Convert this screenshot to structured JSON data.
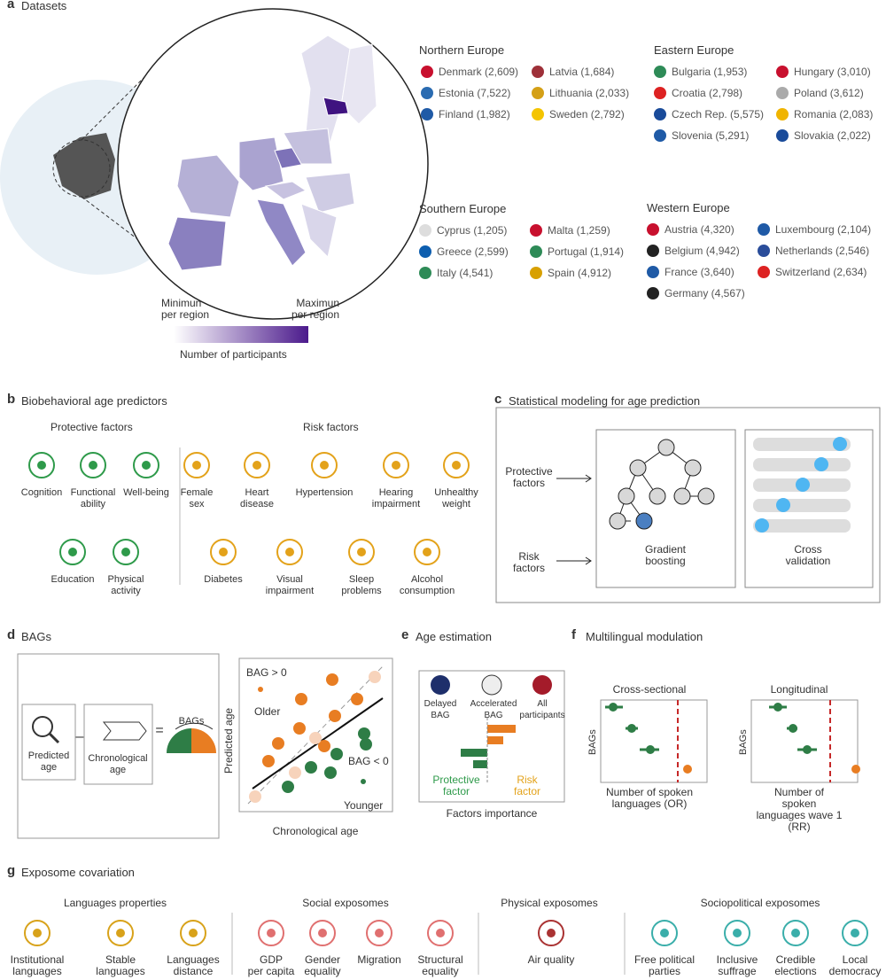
{
  "a": {
    "label": "a",
    "title": "Datasets",
    "regions": [
      {
        "name": "Northern Europe",
        "countries": [
          "Denmark (2,609)",
          "Latvia (1,684)",
          "Estonia (7,522)",
          "Lithuania (2,033)",
          "Finland (1,982)",
          "Sweden (2,792)"
        ]
      },
      {
        "name": "Eastern Europe",
        "countries": [
          "Bulgaria (1,953)",
          "Hungary (3,010)",
          "Croatia (2,798)",
          "Poland (3,612)",
          "Czech Rep. (5,575)",
          "Romania (2,083)",
          "Slovenia (5,291)",
          "Slovakia (2,022)"
        ]
      },
      {
        "name": "Southern Europe",
        "countries": [
          "Cyprus (1,205)",
          "Malta (1,259)",
          "Greece (2,599)",
          "Portugal (1,914)",
          "Italy (4,541)",
          "Spain (4,912)"
        ]
      },
      {
        "name": "Western Europe",
        "countries": [
          "Austria (4,320)",
          "Luxembourg (2,104)",
          "Belgium (4,942)",
          "Netherlands (2,546)",
          "France (3,640)",
          "Switzerland (2,634)",
          "Germany (4,567)"
        ]
      }
    ],
    "legend_min": "Minimun\nper region",
    "legend_max": "Maximun\nper region",
    "legend_caption": "Number of participants"
  },
  "b": {
    "label": "b",
    "title": "Biobehavioral age predictors",
    "protective": {
      "title": "Protective factors",
      "items": [
        "Cognition",
        "Functional\nability",
        "Well-being",
        "Education",
        "Physical\nactivity"
      ]
    },
    "risk": {
      "title": "Risk factors",
      "items": [
        "Female\nsex",
        "Heart\ndisease",
        "Hypertension",
        "Hearing\nimpairment",
        "Unhealthy\nweight",
        "Diabetes",
        "Visual\nimpairment",
        "Sleep\nproblems",
        "Alcohol\nconsumption"
      ]
    }
  },
  "c": {
    "label": "c",
    "title": "Statistical modeling for age prediction",
    "inputs": [
      "Protective\nfactors",
      "Risk\nfactors"
    ],
    "models": [
      "Gradient\nboosting",
      "Cross\nvalidation"
    ]
  },
  "d": {
    "label": "d",
    "title": "BAGs",
    "predicted": "Predicted\nage",
    "minus": "–",
    "chronological": "Chronological\nage",
    "equals": "=",
    "bags": "BAGs",
    "bag_pos": "BAG > 0",
    "older": "Older",
    "bag_neg": "BAG < 0",
    "younger": "Younger",
    "y_axis": "Predicted age",
    "x_axis": "Chronological age"
  },
  "e": {
    "label": "e",
    "title": "Age estimation",
    "groups": [
      "Delayed\nBAG",
      "Accelerated\nBAG",
      "All\nparticipants"
    ],
    "protective": "Protective\nfactor",
    "risk": "Risk\nfactor",
    "x_axis": "Factors importance"
  },
  "f": {
    "label": "f",
    "title": "Multilingual modulation",
    "plots": [
      {
        "title": "Cross-sectional",
        "y_axis": "BAGs",
        "x_axis": "Number of spoken\nlanguages (OR)"
      },
      {
        "title": "Longitudinal",
        "y_axis": "BAGs",
        "x_axis": "Number of spoken\nlanguages wave 1 (RR)"
      }
    ]
  },
  "g": {
    "label": "g",
    "title": "Exposome covariation",
    "groups": [
      {
        "title": "Languages properties",
        "items": [
          "Institutional\nlanguages",
          "Stable\nlanguages",
          "Languages\ndistance"
        ]
      },
      {
        "title": "Social exposomes",
        "items": [
          "GDP\nper capita",
          "Gender\nequality",
          "Migration",
          "Structural\nequality"
        ]
      },
      {
        "title": "Physical exposomes",
        "items": [
          "Air quality"
        ]
      },
      {
        "title": "Sociopolitical exposomes",
        "items": [
          "Free political\nparties",
          "Inclusive\nsuffrage",
          "Credible\nelections",
          "Local\ndemocracy"
        ]
      }
    ]
  }
}
